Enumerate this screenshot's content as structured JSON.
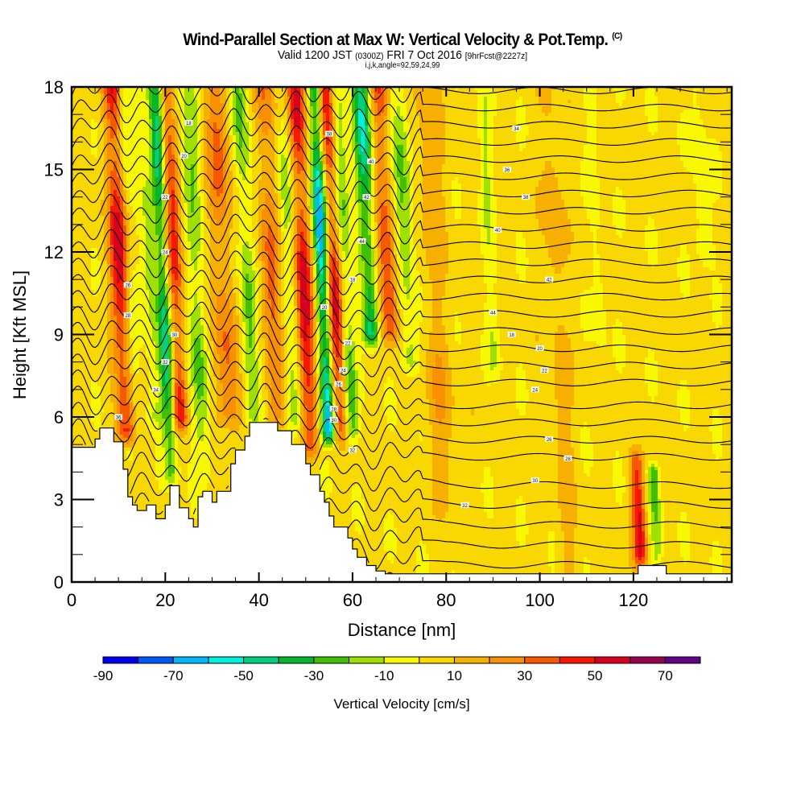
{
  "header": {
    "title": "Wind-Parallel Section at Max W: Vertical Velocity & Pot.Temp.",
    "copyright_mark": "(C)",
    "valid_prefix": "Valid 1200 JST",
    "valid_utc": "(0300Z)",
    "valid_date": "FRI 7 Oct 2016",
    "forecast_tag": "[9hrFcst@2227z]",
    "section_params": "i,j,k,angle=92,59,24,99"
  },
  "chart_data": {
    "type": "heatmap",
    "title": "Wind-Parallel Section at Max W: Vertical Velocity & Pot.Temp.",
    "subtitle": "Valid 1200 JST (0300Z) FRI 7 Oct 2016 [9hrFcst@2227z]",
    "xlabel": "Distance [nm]",
    "ylabel": "Height [Kft MSL]",
    "xlim": [
      0,
      141
    ],
    "ylim": [
      0,
      18
    ],
    "x_ticks": [
      0,
      20,
      40,
      60,
      80,
      100,
      120
    ],
    "x_tick_labels": [
      "0",
      "20",
      "40",
      "60",
      "80",
      "100",
      "120"
    ],
    "x_minor_step": 5,
    "y_ticks": [
      0,
      3,
      6,
      9,
      12,
      15,
      18
    ],
    "y_tick_labels": [
      "0",
      "3",
      "6",
      "9",
      "12",
      "15",
      "18"
    ],
    "y_minor_step": 1,
    "colorbar": {
      "title": "Vertical Velocity [cm/s]",
      "levels": [
        -90,
        -80,
        -70,
        -60,
        -50,
        -40,
        -30,
        -20,
        -10,
        0,
        10,
        20,
        30,
        40,
        50,
        60,
        70,
        80
      ],
      "tick_labels": [
        "-90",
        "-70",
        "-50",
        "-30",
        "-10",
        "10",
        "30",
        "50",
        "70"
      ],
      "tick_values": [
        -90,
        -70,
        -50,
        -30,
        -10,
        10,
        30,
        50,
        70
      ],
      "colors": [
        "#0000f0",
        "#0058f8",
        "#00b8f8",
        "#00f0e0",
        "#00d080",
        "#00b830",
        "#40c000",
        "#a0e000",
        "#f8f800",
        "#f8d800",
        "#f8b000",
        "#f89000",
        "#f85800",
        "#f81800",
        "#d80020",
        "#980050",
        "#600088"
      ]
    },
    "wave_bands": [
      {
        "x": 11,
        "w_peak": 55,
        "width": 2.2,
        "z_min": 5.5
      },
      {
        "x": 13,
        "w_peak": -20,
        "width": 1.5,
        "z_min": 5.5
      },
      {
        "x": 17,
        "w_peak": -20,
        "width": 2.0,
        "z_min": 6
      },
      {
        "x": 20,
        "w_peak": -50,
        "width": 1.4,
        "z_min": 4
      },
      {
        "x": 22.5,
        "w_peak": 45,
        "width": 1.6,
        "z_min": 6
      },
      {
        "x": 27,
        "w_peak": -25,
        "width": 2.0,
        "z_min": 4
      },
      {
        "x": 33,
        "w_peak": 30,
        "width": 2.5,
        "z_min": 6
      },
      {
        "x": 38,
        "w_peak": -30,
        "width": 1.8,
        "z_min": 6
      },
      {
        "x": 43,
        "w_peak": 30,
        "width": 2.2,
        "z_min": 6
      },
      {
        "x": 47,
        "w_peak": -20,
        "width": 1.5,
        "z_min": 6
      },
      {
        "x": 50,
        "w_peak": 55,
        "width": 1.8,
        "z_min": 5
      },
      {
        "x": 54,
        "w_peak": -75,
        "width": 1.4,
        "z_min": 5.5
      },
      {
        "x": 56.5,
        "w_peak": 50,
        "width": 1.6,
        "z_min": 5.5
      },
      {
        "x": 59,
        "w_peak": -30,
        "width": 1.4,
        "z_min": 5.5
      },
      {
        "x": 64,
        "w_peak": -55,
        "width": 1.8,
        "z_min": 9
      },
      {
        "x": 68,
        "w_peak": 40,
        "width": 2.0,
        "z_min": 9
      },
      {
        "x": 72,
        "w_peak": -30,
        "width": 2.0,
        "z_min": 8
      },
      {
        "x": 78,
        "w_peak": 15,
        "width": 3.0,
        "z_min": 3
      },
      {
        "x": 90,
        "w_peak": -15,
        "width": 1.5,
        "z_min": 8
      },
      {
        "x": 104,
        "w_peak": 15,
        "width": 2.0,
        "z_min": 0.5
      },
      {
        "x": 113,
        "w_peak": -12,
        "width": 1.2,
        "z_min": 9
      },
      {
        "x": 119.5,
        "w_peak": 50,
        "width": 1.4,
        "z_min": 1,
        "z_max": 4.5
      },
      {
        "x": 123,
        "w_peak": -35,
        "width": 1.2,
        "z_min": 1,
        "z_max": 4
      },
      {
        "x": 136,
        "w_peak": -15,
        "width": 1.8,
        "z_min": 12
      }
    ],
    "terrain": {
      "x": [
        0,
        0,
        5,
        5,
        6,
        6,
        9,
        9,
        11,
        11,
        12,
        12,
        13,
        13,
        14,
        14,
        16,
        16,
        18,
        18,
        20,
        20,
        21,
        21,
        23,
        23,
        25,
        25,
        26,
        26,
        27,
        27,
        28,
        28,
        30,
        30,
        31,
        31,
        34,
        34,
        35,
        35,
        37,
        37,
        38,
        38,
        39,
        39,
        40,
        40,
        44,
        44,
        47,
        47,
        50,
        50,
        51,
        51,
        53,
        53,
        54,
        54,
        55,
        55,
        56,
        56,
        59,
        59,
        60,
        60,
        61,
        61,
        63,
        63,
        65,
        65,
        67,
        67,
        71,
        71,
        121,
        121,
        127,
        127,
        141
      ],
      "z": [
        4.9,
        4.9,
        4.9,
        5.2,
        5.2,
        5.6,
        5.6,
        5.1,
        5.1,
        4.1,
        4.1,
        3.1,
        3.1,
        2.8,
        2.8,
        2.6,
        2.6,
        2.8,
        2.8,
        2.3,
        2.3,
        2.8,
        2.8,
        3.5,
        3.5,
        2.7,
        2.7,
        2.3,
        2.3,
        2.0,
        2.0,
        3.1,
        3.1,
        3.3,
        3.3,
        2.9,
        2.9,
        3.3,
        3.3,
        4.3,
        4.3,
        4.8,
        4.8,
        5.3,
        5.3,
        5.8,
        5.8,
        5.8,
        5.8,
        5.8,
        5.8,
        5.5,
        5.5,
        5.0,
        5.0,
        4.3,
        4.3,
        3.9,
        3.9,
        3.3,
        3.3,
        2.9,
        2.9,
        2.4,
        2.4,
        2.0,
        2.0,
        1.6,
        1.6,
        1.2,
        1.2,
        0.9,
        0.9,
        0.6,
        0.6,
        0.4,
        0.4,
        0.3,
        0.3,
        0.3,
        0.3,
        0.6,
        0.6,
        0.3,
        0.3
      ]
    },
    "isentrope_count": 28,
    "contour_labels": [
      "18",
      "20",
      "22",
      "24",
      "26",
      "28",
      "30",
      "32",
      "34",
      "36",
      "38",
      "40",
      "42",
      "44"
    ]
  }
}
